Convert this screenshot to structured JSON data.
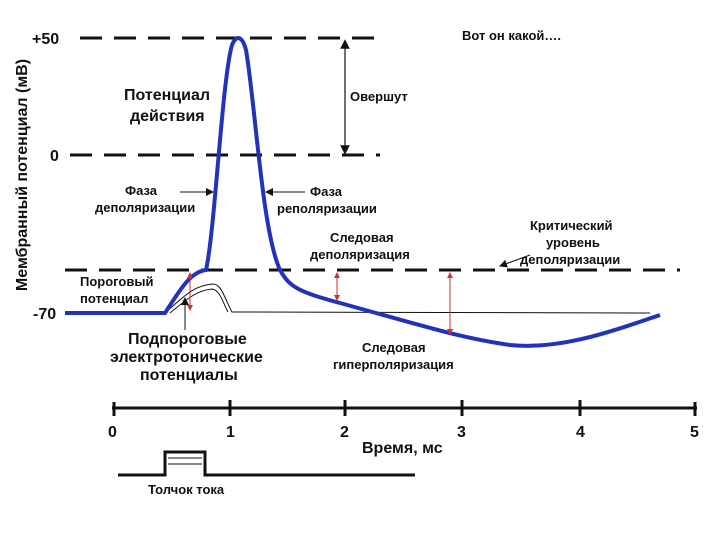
{
  "title": "Вот он какой….",
  "y_axis": {
    "label": "Мембранный потенциал (мВ)",
    "ticks": [
      "+50",
      "0",
      "-70"
    ]
  },
  "x_axis": {
    "label": "Время, мс",
    "ticks": [
      "0",
      "1",
      "2",
      "3",
      "4",
      "5"
    ]
  },
  "annotations": {
    "action_potential": [
      "Потенциал",
      "действия"
    ],
    "overshoot": "Овершут",
    "depolarization": [
      "Фаза",
      "деполяризации"
    ],
    "repolarization": [
      "Фаза",
      "реполяризации"
    ],
    "critical_level": [
      "Критический",
      "уровень",
      "деполяризации"
    ],
    "trace_depolarization": [
      "Следовая",
      "деполяризация"
    ],
    "threshold": [
      "Пороговый",
      "потенциал"
    ],
    "subthreshold": [
      "Подпороговые",
      "электротонические",
      "потенциалы"
    ],
    "trace_hyperpolarization": [
      "Следовая",
      "гиперполяризация"
    ],
    "stimulus": "Толчок тока"
  }
}
